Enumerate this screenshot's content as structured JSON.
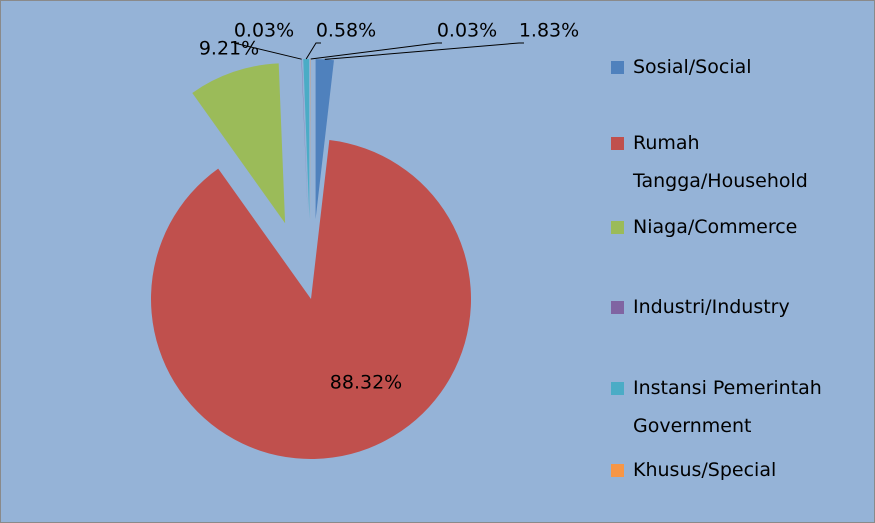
{
  "chart_data": {
    "type": "pie",
    "categories": [
      "Sosial/Social",
      "Rumah Tangga/Household",
      "Niaga/Commerce",
      "Industri/Industry",
      "Instansi Pemerintah Government",
      "Khusus/Special"
    ],
    "values": [
      1.83,
      88.32,
      9.21,
      0.03,
      0.58,
      0.03
    ],
    "value_labels": [
      "1.83%",
      "88.32%",
      "9.21%",
      "0.03%",
      "0.58%",
      "0.03%"
    ],
    "colors": [
      "#4f81bd",
      "#c0504d",
      "#9bbb59",
      "#8064a2",
      "#4bacc6",
      "#f79646"
    ],
    "legend": "right"
  }
}
